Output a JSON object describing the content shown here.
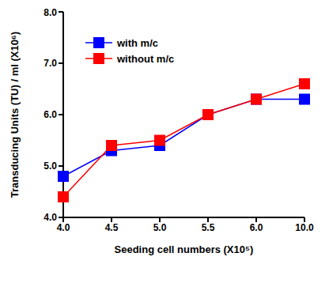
{
  "chart_data": {
    "type": "line",
    "x_label": "Seeding cell numbers (X10⁵)",
    "y_label": "Transducing Units (TU) / ml (X10⁶)",
    "categories": [
      "4.0",
      "4.5",
      "5.0",
      "5.5",
      "6.0",
      "10.0"
    ],
    "series": [
      {
        "name": "with m/c",
        "color": "#0000ff",
        "marker": "square",
        "line_style": "solid",
        "values": [
          4.8,
          5.3,
          5.4,
          6.0,
          6.3,
          6.3
        ]
      },
      {
        "name": "without m/c",
        "color": "#ff0000",
        "marker": "square",
        "line_style": "solid",
        "values": [
          4.4,
          5.4,
          5.5,
          6.0,
          6.3,
          6.6
        ]
      }
    ],
    "ylim": [
      4,
      8
    ],
    "yticks": [
      {
        "value": 4,
        "label": "4.0"
      },
      {
        "value": 5,
        "label": "5.0"
      },
      {
        "value": 6,
        "label": "6.0"
      },
      {
        "value": 7,
        "label": "7.0"
      },
      {
        "value": 8,
        "label": "8.0"
      }
    ],
    "grid": false,
    "legend": "upper left"
  }
}
